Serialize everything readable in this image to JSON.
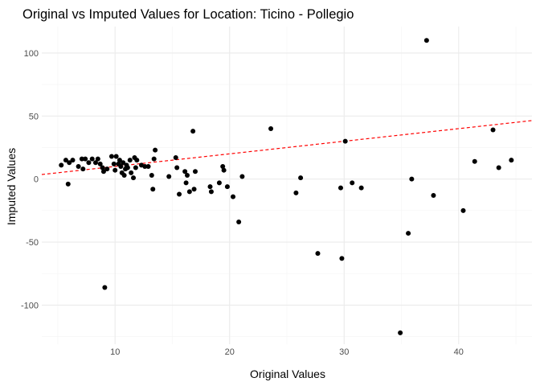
{
  "chart_data": {
    "type": "scatter",
    "title": "Original vs Imputed Values for Location: Ticino - Pollegio",
    "xlabel": "Original Values",
    "ylabel": "Imputed Values",
    "xlim": [
      3.6,
      46.4
    ],
    "ylim": [
      -131,
      121
    ],
    "x_ticks": [
      10,
      20,
      30,
      40
    ],
    "x_minor_ticks": [
      5,
      15,
      25,
      35,
      45
    ],
    "y_ticks": [
      -100,
      -50,
      0,
      50,
      100
    ],
    "y_minor_ticks": [
      -125,
      -75,
      -25,
      25,
      75
    ],
    "x_tick_labels": [
      "10",
      "20",
      "30",
      "40"
    ],
    "y_tick_labels": [
      "-100",
      "-50",
      "0",
      "50",
      "100"
    ],
    "grid": true,
    "point_color": "#000000",
    "reference_line": {
      "slope": 1,
      "intercept": 0,
      "style": "dashed",
      "color": "#ff0000"
    },
    "points": [
      [
        5.3,
        11
      ],
      [
        5.7,
        15
      ],
      [
        5.9,
        -4
      ],
      [
        6.0,
        13
      ],
      [
        6.3,
        15
      ],
      [
        6.8,
        10
      ],
      [
        7.1,
        16
      ],
      [
        7.2,
        8
      ],
      [
        7.4,
        16
      ],
      [
        7.7,
        13
      ],
      [
        8.0,
        16
      ],
      [
        8.3,
        13
      ],
      [
        8.5,
        16
      ],
      [
        8.7,
        12
      ],
      [
        8.9,
        9
      ],
      [
        9.0,
        6
      ],
      [
        9.1,
        -86
      ],
      [
        9.3,
        8
      ],
      [
        9.7,
        18
      ],
      [
        9.9,
        12
      ],
      [
        10.0,
        7
      ],
      [
        10.1,
        18
      ],
      [
        10.3,
        12
      ],
      [
        10.4,
        15
      ],
      [
        10.5,
        10
      ],
      [
        10.6,
        5
      ],
      [
        10.7,
        13
      ],
      [
        10.8,
        3
      ],
      [
        10.9,
        8
      ],
      [
        11.0,
        11
      ],
      [
        11.1,
        9
      ],
      [
        11.3,
        15
      ],
      [
        11.4,
        5
      ],
      [
        11.6,
        1
      ],
      [
        11.7,
        17
      ],
      [
        11.8,
        9
      ],
      [
        11.9,
        15
      ],
      [
        12.3,
        11
      ],
      [
        12.6,
        10
      ],
      [
        12.9,
        10
      ],
      [
        13.2,
        3
      ],
      [
        13.3,
        -8
      ],
      [
        13.4,
        16
      ],
      [
        13.5,
        23
      ],
      [
        14.7,
        2
      ],
      [
        15.3,
        17
      ],
      [
        15.4,
        9
      ],
      [
        15.6,
        -12
      ],
      [
        16.1,
        6
      ],
      [
        16.2,
        -3
      ],
      [
        16.3,
        3
      ],
      [
        16.5,
        -10
      ],
      [
        16.8,
        38
      ],
      [
        16.9,
        -8
      ],
      [
        17.0,
        6
      ],
      [
        18.3,
        -6
      ],
      [
        18.4,
        -10
      ],
      [
        19.1,
        -3
      ],
      [
        19.4,
        10
      ],
      [
        19.5,
        7
      ],
      [
        19.8,
        -6
      ],
      [
        20.3,
        -14
      ],
      [
        20.8,
        -34
      ],
      [
        21.1,
        2
      ],
      [
        23.6,
        40
      ],
      [
        25.8,
        -11
      ],
      [
        26.2,
        1
      ],
      [
        27.7,
        -59
      ],
      [
        29.7,
        -7
      ],
      [
        29.8,
        -63
      ],
      [
        30.1,
        30
      ],
      [
        30.7,
        -3
      ],
      [
        31.5,
        -7
      ],
      [
        34.9,
        -122
      ],
      [
        35.6,
        -43
      ],
      [
        35.9,
        0
      ],
      [
        37.2,
        110
      ],
      [
        37.8,
        -13
      ],
      [
        40.4,
        -25
      ],
      [
        41.4,
        14
      ],
      [
        43.0,
        39
      ],
      [
        43.5,
        9
      ],
      [
        44.6,
        15
      ]
    ]
  }
}
